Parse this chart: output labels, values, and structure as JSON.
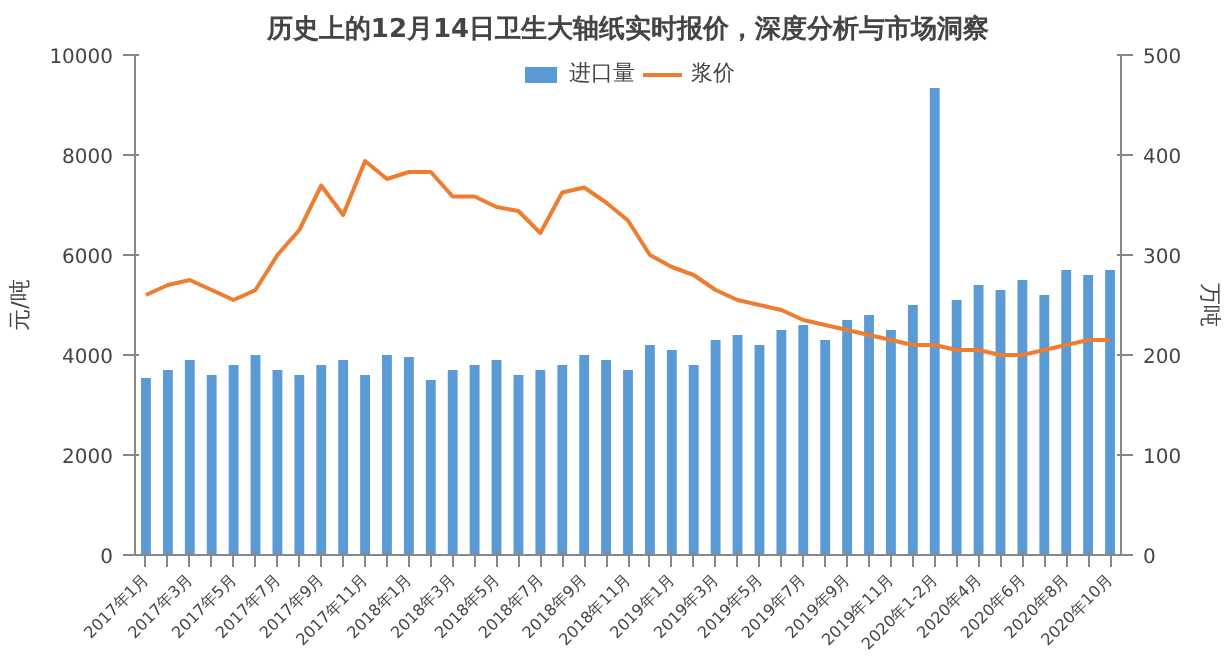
{
  "chart_data": {
    "type": "bar",
    "title": "历史上的12月14日卫生大轴纸实时报价，深度分析与市场洞察",
    "ylabel": "元/吨",
    "y2label": "万吨",
    "categories": [
      "2017年1月",
      null,
      "2017年3月",
      null,
      "2017年5月",
      null,
      "2017年7月",
      null,
      "2017年9月",
      null,
      "2017年11月",
      null,
      "2018年1月",
      null,
      "2018年3月",
      null,
      "2018年5月",
      null,
      "2018年7月",
      null,
      "2018年9月",
      null,
      "2018年11月",
      null,
      "2019年1月",
      null,
      "2019年3月",
      null,
      "2019年5月",
      null,
      "2019年7月",
      null,
      "2019年9月",
      null,
      "2019年11月",
      null,
      "2020年1-2月",
      null,
      "2020年4月",
      null,
      "2020年6月",
      null,
      "2020年8月",
      null,
      "2020年10月"
    ],
    "series": [
      {
        "name": "进口量",
        "axis": "y2",
        "color": "#5b9bd5",
        "values": [
          177,
          185,
          195,
          180,
          190,
          200,
          185,
          180,
          190,
          195,
          180,
          200,
          198,
          175,
          185,
          190,
          195,
          180,
          185,
          190,
          200,
          195,
          185,
          210,
          205,
          190,
          215,
          220,
          210,
          225,
          230,
          215,
          235,
          240,
          225,
          250,
          467,
          255,
          270,
          265,
          275,
          260,
          285,
          280,
          285
        ]
      },
      {
        "name": "浆价",
        "type": "line",
        "color": "#ed7d31",
        "values": [
          5200,
          5400,
          5500,
          5300,
          5100,
          5300,
          6000,
          6500,
          7390,
          6800,
          7880,
          7520,
          7660,
          7660,
          7170,
          7170,
          6960,
          6880,
          6440,
          7250,
          7350,
          7050,
          6690,
          6000,
          5760,
          5600,
          5300,
          5100,
          5000,
          4900,
          4700,
          4600,
          4500,
          4400,
          4300,
          4200,
          4200,
          4100,
          4100,
          4000,
          4000,
          4100,
          4200,
          4300,
          4300
        ]
      }
    ],
    "ylim": [
      0,
      10000
    ],
    "yticks": [
      0,
      2000,
      4000,
      6000,
      8000,
      10000
    ],
    "y2lim": [
      0,
      500
    ],
    "y2ticks": [
      0,
      100,
      200,
      300,
      400,
      500
    ],
    "grid": false,
    "legend": "top"
  }
}
